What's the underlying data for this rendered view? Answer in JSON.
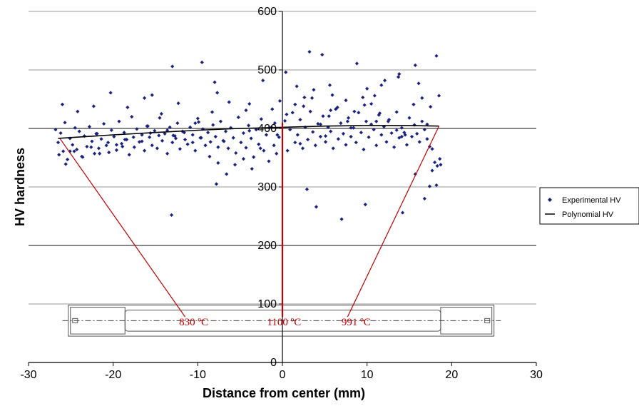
{
  "chart_data": {
    "type": "scatter",
    "title": "",
    "xlabel": "Distance from center (mm)",
    "ylabel": "HV hardness",
    "xlim": [
      -30,
      30
    ],
    "ylim": [
      0,
      600
    ],
    "x_ticks": [
      -30,
      -20,
      -10,
      0,
      10,
      20,
      30
    ],
    "y_ticks": [
      0,
      100,
      200,
      300,
      400,
      500,
      600
    ],
    "grid": "horizontal",
    "legend_position": "right",
    "colors": {
      "points": "#1a237e",
      "trend": "#000000",
      "annotation": "#c00000",
      "gridline": "#808080"
    },
    "series": [
      {
        "name": "Experimental HV",
        "marker": "diamond",
        "x": [
          -26.8,
          -26.5,
          -26.2,
          -25.9,
          -25.7,
          -25.4,
          -25.1,
          -24.8,
          -24.5,
          -24.3,
          -24.0,
          -23.7,
          -23.4,
          -23.1,
          -22.8,
          -22.5,
          -22.2,
          -22.0,
          -21.7,
          -21.4,
          -21.1,
          -20.8,
          -20.5,
          -20.2,
          -19.9,
          -19.6,
          -19.3,
          -19.0,
          -18.7,
          -18.4,
          -18.1,
          -17.8,
          -17.5,
          -17.2,
          -16.9,
          -16.6,
          -16.3,
          -16.0,
          -15.7,
          -15.4,
          -15.1,
          -14.8,
          -14.5,
          -14.2,
          -13.9,
          -13.6,
          -13.3,
          -13.0,
          -12.7,
          -12.4,
          -12.1,
          -11.8,
          -11.5,
          -11.2,
          -10.9,
          -10.6,
          -10.3,
          -10.0,
          -9.7,
          -9.4,
          -9.1,
          -8.8,
          -8.5,
          -8.2,
          -7.9,
          -7.6,
          -7.3,
          -7.0,
          -6.7,
          -6.4,
          -6.1,
          -5.8,
          -5.5,
          -5.2,
          -4.9,
          -4.6,
          -4.3,
          -4.0,
          -3.7,
          -3.4,
          -3.1,
          -2.8,
          -2.5,
          -2.2,
          -1.9,
          -1.6,
          -1.3,
          -1.0,
          -0.7,
          -0.4,
          0.3,
          0.6,
          0.9,
          1.2,
          1.5,
          1.8,
          2.1,
          2.4,
          2.7,
          3.0,
          3.3,
          3.6,
          3.9,
          4.2,
          4.5,
          4.8,
          5.1,
          5.4,
          5.7,
          6.0,
          6.3,
          6.6,
          6.9,
          7.2,
          7.5,
          7.8,
          8.1,
          8.4,
          8.7,
          9.0,
          9.3,
          9.6,
          9.9,
          10.2,
          10.5,
          10.8,
          11.1,
          11.4,
          11.7,
          12.0,
          12.3,
          12.6,
          12.9,
          13.2,
          13.5,
          13.8,
          14.1,
          14.4,
          14.7,
          15.0,
          15.3,
          15.6,
          15.9,
          16.2,
          16.5,
          16.8,
          17.1,
          17.4,
          17.7,
          18.0,
          18.3,
          18.6,
          -26.4,
          -25.6,
          -24.6,
          -23.6,
          -22.6,
          -21.6,
          -20.6,
          -19.6,
          -18.6,
          -17.6,
          -16.6,
          -15.6,
          -14.6,
          -13.6,
          -12.6,
          -11.6,
          -10.6,
          -9.6,
          -8.6,
          -7.6,
          -6.6,
          -5.6,
          -4.6,
          -3.6,
          -2.6,
          -1.6,
          -0.6,
          0.5,
          1.5,
          2.5,
          3.5,
          4.5,
          5.5,
          6.5,
          7.5,
          8.5,
          9.5,
          10.5,
          11.5,
          12.5,
          13.5,
          14.5,
          15.5,
          16.5,
          17.5,
          18.5,
          -26.0,
          -24.2,
          -22.3,
          -20.3,
          -18.3,
          -16.3,
          -14.3,
          -12.3,
          -10.3,
          -8.3,
          -6.3,
          -4.3,
          -2.3,
          -0.3,
          1.7,
          3.7,
          5.7,
          7.7,
          9.7,
          11.7,
          13.7,
          15.7,
          17.7,
          -15.4,
          -13.0,
          -9.5,
          -8.0,
          -7.7,
          -3.9,
          -1.2,
          0.4,
          2.6,
          3.2,
          4.7,
          5.6,
          5.9,
          8.8,
          10.0,
          10.9,
          12.1,
          13.8,
          16.1,
          18.2,
          18.7,
          15.7,
          17.4,
          7.0,
          -13.1,
          -7.8,
          2.9,
          9.8,
          14.2,
          18.2,
          16.8,
          4.0,
          -25.1,
          -21.9,
          -18.9,
          -15.9,
          -12.9,
          -9.9,
          -6.9,
          -3.9,
          -0.9,
          2.1,
          5.1,
          8.1,
          11.1,
          14.1,
          17.1
        ],
        "y": [
          398,
          376,
          392,
          361,
          410,
          347,
          383,
          372,
          401,
          364,
          395,
          352,
          387,
          369,
          403,
          378,
          357,
          391,
          366,
          382,
          408,
          371,
          359,
          397,
          386,
          363,
          412,
          374,
          393,
          381,
          355,
          420,
          368,
          399,
          377,
          389,
          362,
          404,
          385,
          371,
          396,
          366,
          418,
          379,
          391,
          357,
          402,
          376,
          387,
          409,
          365,
          395,
          381,
          373,
          402,
          389,
          362,
          417,
          384,
          399,
          371,
          393,
          377,
          406,
          386,
          368,
          412,
          379,
          395,
          366,
          401,
          384,
          358,
          419,
          376,
          392,
          367,
          405,
          383,
          351,
          398,
          373,
          416,
          362,
          389,
          344,
          402,
          371,
          357,
          385,
          413,
          362,
          398,
          427,
          376,
          389,
          415,
          366,
          402,
          381,
          429,
          394,
          371,
          408,
          386,
          421,
          377,
          402,
          395,
          366,
          433,
          382,
          409,
          391,
          372,
          418,
          386,
          401,
          376,
          427,
          393,
          364,
          412,
          385,
          407,
          398,
          371,
          423,
          389,
          403,
          377,
          415,
          392,
          368,
          428,
          384,
          401,
          393,
          372,
          418,
          386,
          406,
          391,
          377,
          412,
          398,
          382,
          369,
          365,
          342,
          336,
          348,
          355,
          339,
          361,
          351,
          368,
          357,
          376,
          372,
          381,
          385,
          378,
          392,
          388,
          397,
          383,
          393,
          376,
          384,
          352,
          341,
          322,
          338,
          348,
          331,
          366,
          401,
          389,
          424,
          441,
          438,
          452,
          407,
          421,
          436,
          448,
          429,
          453,
          442,
          426,
          412,
          397,
          389,
          441,
          452,
          437,
          456,
          441,
          429,
          438,
          461,
          436,
          452,
          425,
          443,
          409,
          428,
          445,
          431,
          482,
          447,
          472,
          466,
          431,
          412,
          440,
          474,
          488,
          508,
          328,
          457,
          506,
          513,
          479,
          461,
          442,
          433,
          496,
          453,
          531,
          526,
          474,
          457,
          511,
          468,
          456,
          482,
          493,
          477,
          524,
          338,
          322,
          301,
          245,
          252,
          305,
          296,
          270,
          256,
          303,
          280,
          266,
          361,
          391,
          369,
          404,
          388,
          411,
          378,
          396,
          409,
          374,
          387,
          401,
          412,
          386,
          407
        ],
        "values_note": ""
      },
      {
        "name": "Polynomial HV",
        "type": "line",
        "x": [
          -26.5,
          -20,
          -15,
          -10,
          -5,
          0,
          5,
          10,
          15,
          18.5
        ],
        "y": [
          383,
          389,
          393,
          397,
          400,
          402,
          404,
          405,
          405,
          404
        ]
      }
    ],
    "annotations": [
      {
        "label": "830 ºC",
        "x": -11.5,
        "y": 73
      },
      {
        "label": "1100 ºC",
        "x": 0.2,
        "y": 73
      },
      {
        "label": "991 ºC",
        "x": 7.7,
        "y": 73
      }
    ]
  }
}
